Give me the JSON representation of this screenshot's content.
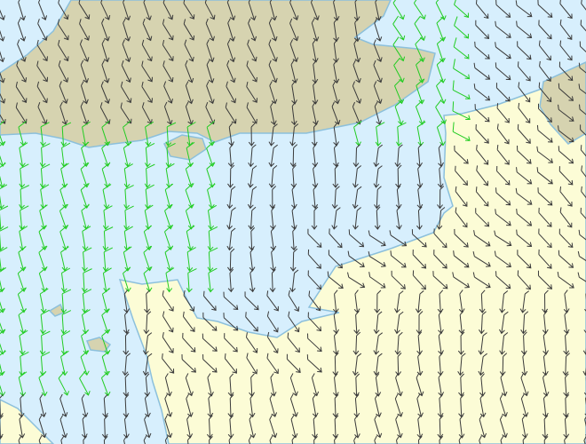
{
  "map": {
    "type": "wind-barb-map",
    "colors": {
      "water": "#d7effd",
      "coastline": "#8cc0dc",
      "land_north": "#d6d3b0",
      "land_south": "#fcfcd6",
      "barb_default": "#3a3a3a",
      "barb_strong": "#22cc22"
    },
    "icons": {
      "barb": "wind-barb-icon"
    }
  }
}
